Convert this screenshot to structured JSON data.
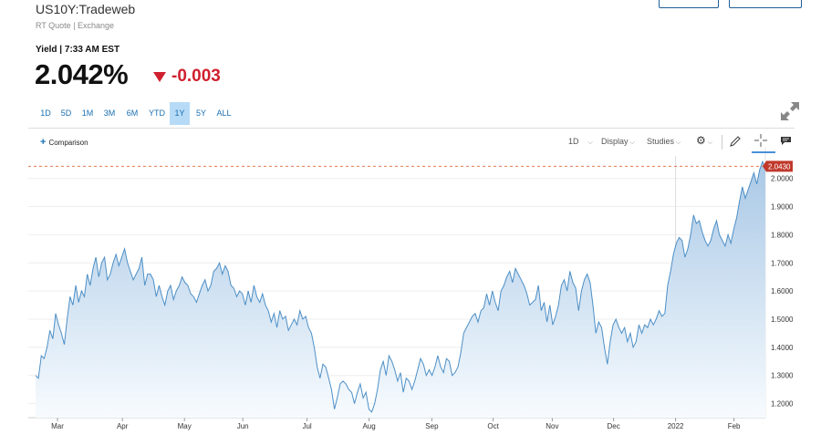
{
  "header": {
    "symbol": "US10Y:Tradeweb",
    "source": "RT Quote | Exchange",
    "yield_label": "Yield | 7:33 AM EST",
    "price": "2.042%",
    "change": "-0.003"
  },
  "ranges": [
    {
      "label": "1D",
      "active": false
    },
    {
      "label": "5D",
      "active": false
    },
    {
      "label": "1M",
      "active": false
    },
    {
      "label": "3M",
      "active": false
    },
    {
      "label": "6M",
      "active": false
    },
    {
      "label": "YTD",
      "active": false
    },
    {
      "label": "1Y",
      "active": true
    },
    {
      "label": "5Y",
      "active": false
    },
    {
      "label": "ALL",
      "active": false
    }
  ],
  "toolbar": {
    "comparison": "Comparison",
    "interval": "1D",
    "display": "Display",
    "studies": "Studies"
  },
  "icons": {
    "expand": "expand-icon",
    "settings": "gear-icon",
    "draw": "pencil-icon",
    "crosshair": "crosshair-icon",
    "comment": "comment-icon"
  },
  "colors": {
    "line": "#4d8fc6",
    "fill_top": "#a9c8e6",
    "fill_bottom": "#f7fbfe",
    "last_price": "#c0392b",
    "accent": "#1a6fb0",
    "negative": "#d0202e"
  },
  "chart_data": {
    "type": "area",
    "title": "",
    "xlabel": "",
    "ylabel": "",
    "ylim": [
      1.15,
      2.08
    ],
    "y_ticks": [
      "1.2000",
      "1.3000",
      "1.4000",
      "1.5000",
      "1.6000",
      "1.7000",
      "1.8000",
      "1.9000",
      "2.0000"
    ],
    "x_ticks": [
      "Mar",
      "Apr",
      "May",
      "Jun",
      "Jul",
      "Aug",
      "Sep",
      "Oct",
      "Nov",
      "Dec",
      "2022",
      "Feb"
    ],
    "last_value_label": "2.0430",
    "last_value": 2.043,
    "grid": true,
    "series": [
      {
        "values": [
          1.3,
          1.29,
          1.37,
          1.36,
          1.4,
          1.46,
          1.43,
          1.52,
          1.48,
          1.45,
          1.41,
          1.5,
          1.58,
          1.55,
          1.62,
          1.56,
          1.6,
          1.58,
          1.66,
          1.62,
          1.68,
          1.72,
          1.65,
          1.7,
          1.72,
          1.64,
          1.66,
          1.7,
          1.73,
          1.69,
          1.72,
          1.75,
          1.7,
          1.67,
          1.64,
          1.66,
          1.68,
          1.72,
          1.62,
          1.66,
          1.66,
          1.64,
          1.58,
          1.62,
          1.58,
          1.55,
          1.6,
          1.62,
          1.57,
          1.6,
          1.62,
          1.65,
          1.63,
          1.62,
          1.59,
          1.58,
          1.56,
          1.59,
          1.62,
          1.64,
          1.6,
          1.62,
          1.67,
          1.68,
          1.7,
          1.66,
          1.69,
          1.67,
          1.62,
          1.61,
          1.58,
          1.6,
          1.59,
          1.55,
          1.6,
          1.56,
          1.62,
          1.58,
          1.56,
          1.59,
          1.55,
          1.53,
          1.49,
          1.52,
          1.47,
          1.53,
          1.5,
          1.51,
          1.46,
          1.48,
          1.5,
          1.48,
          1.53,
          1.5,
          1.51,
          1.47,
          1.45,
          1.4,
          1.33,
          1.29,
          1.34,
          1.33,
          1.29,
          1.25,
          1.18,
          1.22,
          1.27,
          1.28,
          1.27,
          1.25,
          1.24,
          1.2,
          1.24,
          1.27,
          1.22,
          1.24,
          1.18,
          1.17,
          1.2,
          1.25,
          1.32,
          1.35,
          1.3,
          1.37,
          1.35,
          1.32,
          1.28,
          1.31,
          1.24,
          1.29,
          1.28,
          1.25,
          1.28,
          1.32,
          1.36,
          1.34,
          1.3,
          1.32,
          1.3,
          1.33,
          1.37,
          1.33,
          1.31,
          1.36,
          1.35,
          1.3,
          1.31,
          1.33,
          1.38,
          1.45,
          1.47,
          1.49,
          1.51,
          1.52,
          1.49,
          1.53,
          1.54,
          1.59,
          1.55,
          1.6,
          1.56,
          1.53,
          1.6,
          1.62,
          1.65,
          1.67,
          1.63,
          1.68,
          1.66,
          1.64,
          1.62,
          1.59,
          1.55,
          1.56,
          1.57,
          1.62,
          1.53,
          1.56,
          1.49,
          1.55,
          1.48,
          1.51,
          1.55,
          1.62,
          1.64,
          1.6,
          1.67,
          1.63,
          1.61,
          1.53,
          1.6,
          1.64,
          1.66,
          1.63,
          1.55,
          1.45,
          1.49,
          1.47,
          1.4,
          1.34,
          1.42,
          1.48,
          1.5,
          1.47,
          1.45,
          1.47,
          1.42,
          1.45,
          1.4,
          1.42,
          1.48,
          1.45,
          1.48,
          1.47,
          1.5,
          1.48,
          1.5,
          1.53,
          1.51,
          1.52,
          1.62,
          1.67,
          1.73,
          1.77,
          1.79,
          1.78,
          1.72,
          1.75,
          1.8,
          1.87,
          1.84,
          1.85,
          1.81,
          1.78,
          1.76,
          1.78,
          1.82,
          1.85,
          1.8,
          1.78,
          1.76,
          1.8,
          1.77,
          1.82,
          1.86,
          1.92,
          1.97,
          1.93,
          1.96,
          1.99,
          2.02,
          1.98,
          2.03,
          2.06,
          2.04
        ]
      }
    ]
  }
}
